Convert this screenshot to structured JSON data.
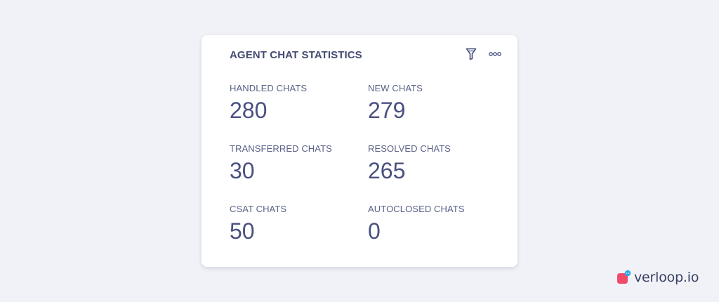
{
  "card": {
    "title": "AGENT CHAT STATISTICS",
    "filter_icon": "filter-icon",
    "more_icon": "more-options-icon"
  },
  "stats": [
    {
      "label": "HANDLED CHATS",
      "value": "280"
    },
    {
      "label": "NEW CHATS",
      "value": "279"
    },
    {
      "label": "TRANSFERRED CHATS",
      "value": "30"
    },
    {
      "label": "RESOLVED CHATS",
      "value": "265"
    },
    {
      "label": "CSAT CHATS",
      "value": "50"
    },
    {
      "label": "AUTOCLOSED CHATS",
      "value": "0"
    }
  ],
  "brand": {
    "name": "verloop.io"
  },
  "colors": {
    "background": "#f0f2f7",
    "card": "#ffffff",
    "text_primary": "#454b73",
    "logo_pink": "#f04a6b",
    "logo_blue": "#2aa8e8"
  }
}
